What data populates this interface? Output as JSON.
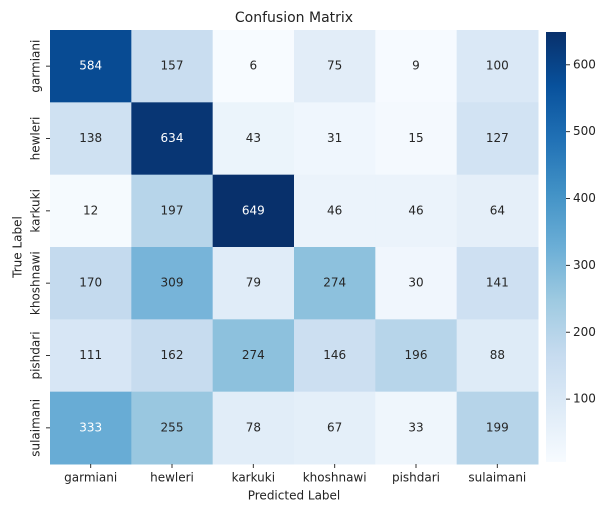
{
  "chart_data": {
    "type": "heatmap",
    "title": "Confusion Matrix",
    "x_label": "Predicted Label",
    "y_label": "True Label",
    "x_categories": [
      "garmiani",
      "hewleri",
      "karkuki",
      "khoshnawi",
      "pishdari",
      "sulaimani"
    ],
    "y_categories": [
      "garmiani",
      "hewleri",
      "karkuki",
      "khoshnawi",
      "pishdari",
      "sulaimani"
    ],
    "values": [
      [
        584,
        157,
        6,
        75,
        9,
        100
      ],
      [
        138,
        634,
        43,
        31,
        15,
        127
      ],
      [
        12,
        197,
        649,
        46,
        46,
        64
      ],
      [
        170,
        309,
        79,
        274,
        30,
        141
      ],
      [
        111,
        162,
        274,
        146,
        196,
        88
      ],
      [
        333,
        255,
        78,
        67,
        33,
        199
      ]
    ],
    "colormap": [
      "#f7fbff",
      "#deebf7",
      "#c6dbef",
      "#9ecae1",
      "#6baed6",
      "#4292c6",
      "#2171b5",
      "#08519c",
      "#08306b"
    ],
    "clim": [
      6,
      649
    ],
    "cticks": [
      100,
      200,
      300,
      400,
      500,
      600
    ]
  }
}
